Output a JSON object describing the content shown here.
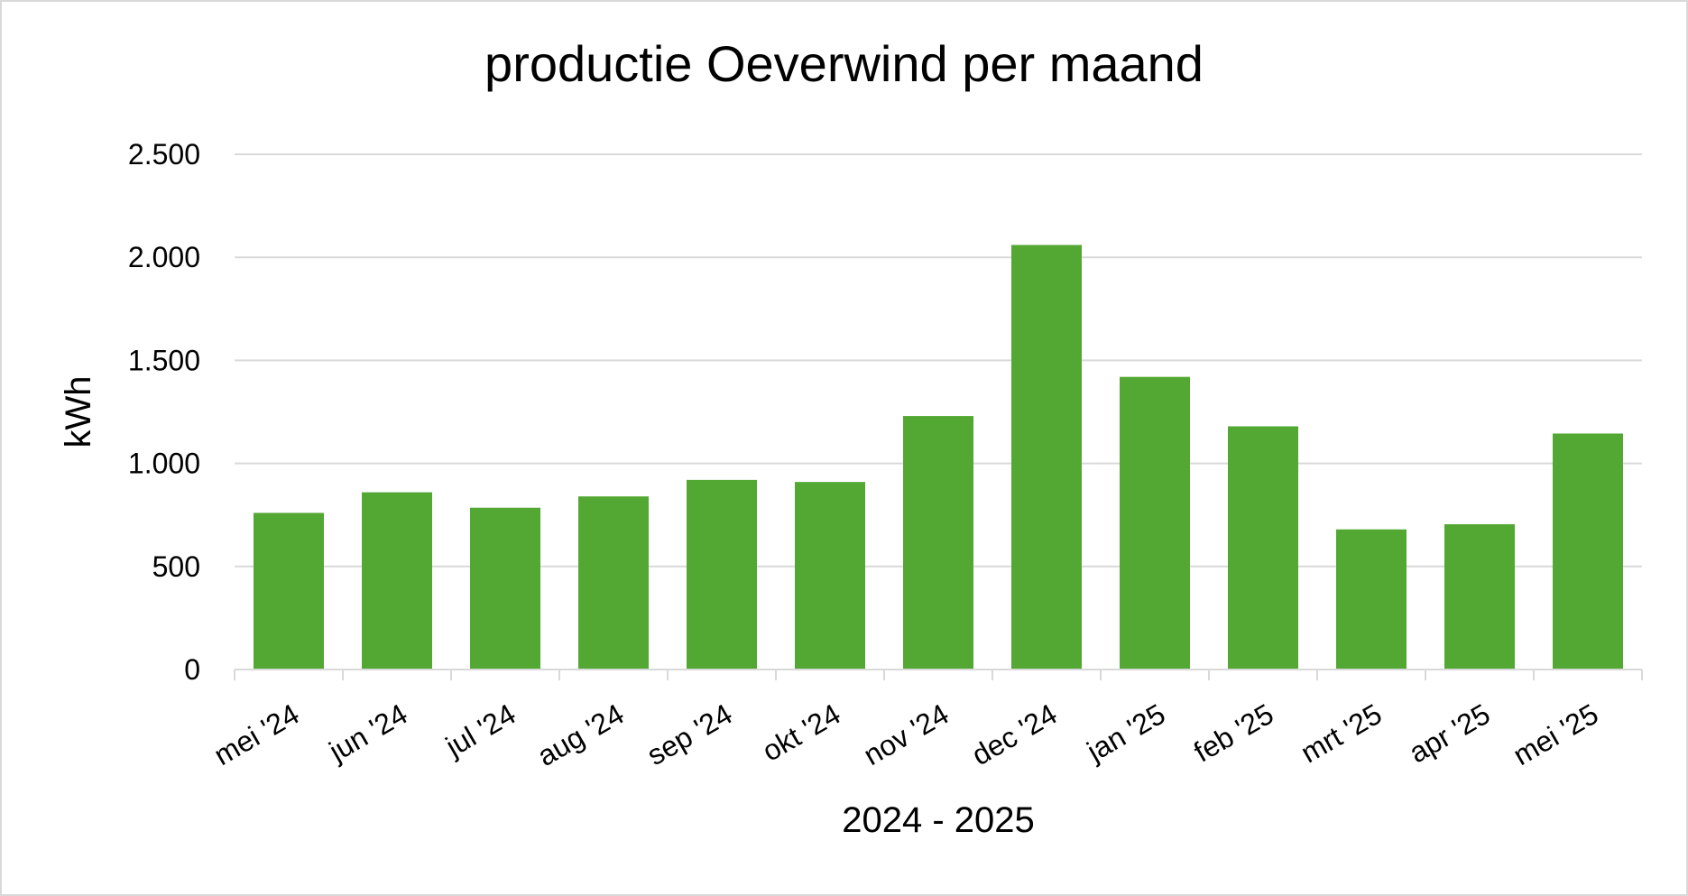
{
  "chart_data": {
    "type": "bar",
    "title": "productie Oeverwind per maand",
    "xlabel": "2024 - 2025",
    "ylabel": "kWh",
    "categories": [
      "mei '24",
      "jun '24",
      "jul '24",
      "aug '24",
      "sep '24",
      "okt '24",
      "nov '24",
      "dec '24",
      "jan '25",
      "feb '25",
      "mrt '25",
      "apr '25",
      "mei '25"
    ],
    "values": [
      760,
      860,
      785,
      840,
      920,
      910,
      1230,
      2060,
      1420,
      1180,
      680,
      705,
      1145
    ],
    "ylim": [
      0,
      2500
    ],
    "yticks": [
      0,
      500,
      1000,
      1500,
      2000,
      2500
    ],
    "ytick_labels": [
      "0",
      "500",
      "1.000",
      "1.500",
      "2.000",
      "2.500"
    ],
    "grid": true,
    "legend": "none",
    "colors": {
      "bar": "#52a832",
      "grid": "#d9d9d9",
      "axis": "#d9d9d9",
      "text": "#000000"
    }
  }
}
